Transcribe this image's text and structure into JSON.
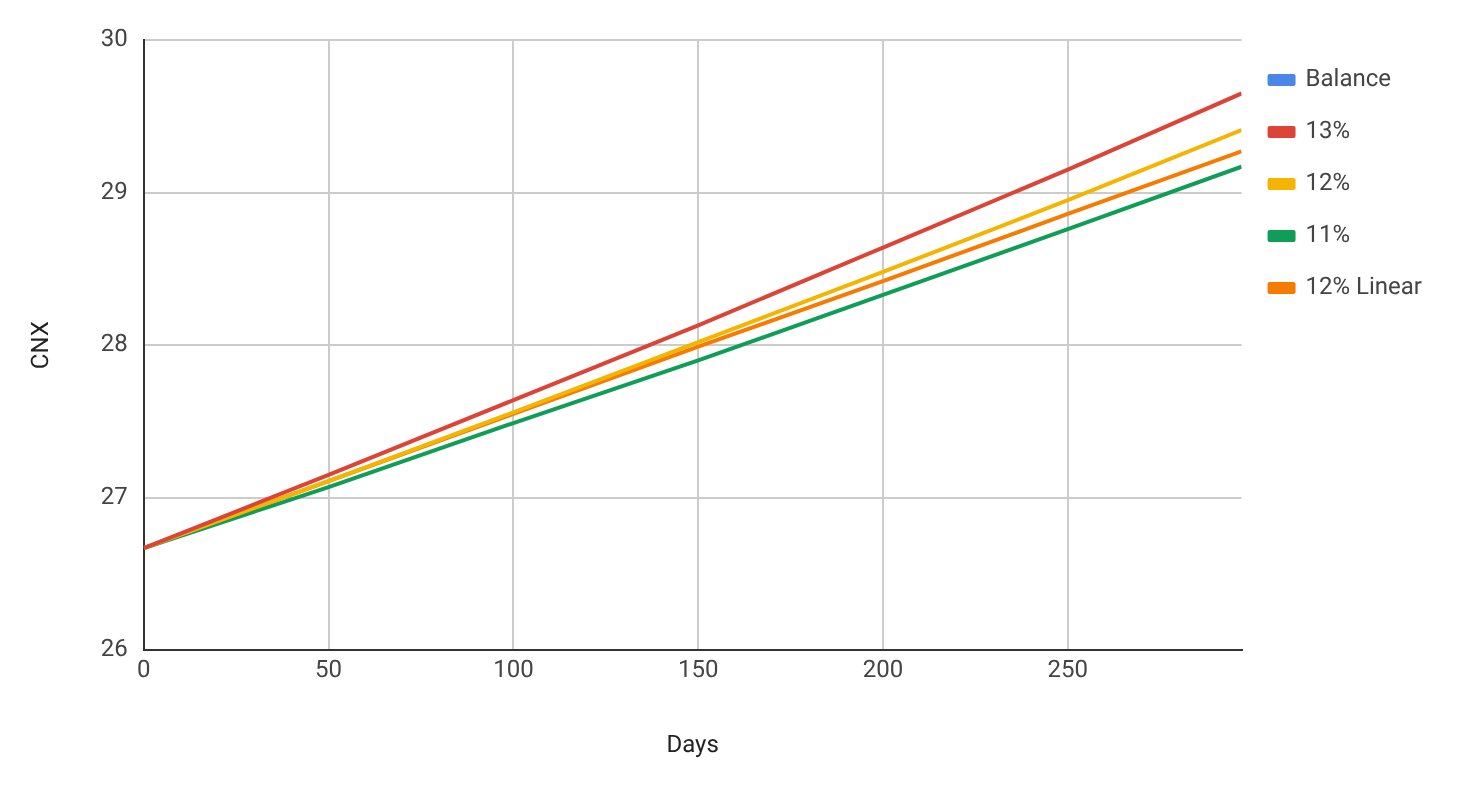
{
  "chart_data": {
    "type": "line",
    "xlabel": "Days",
    "ylabel": "CNX",
    "x": [
      0,
      50,
      100,
      150,
      200,
      250,
      297
    ],
    "series": [
      {
        "name": "Balance",
        "color": "#4a86e8",
        "values": [
          null,
          null,
          null,
          null,
          null,
          null,
          null
        ]
      },
      {
        "name": "13%",
        "color": "#db4437",
        "values": [
          26.67,
          27.15,
          27.64,
          28.13,
          28.64,
          29.15,
          29.65
        ]
      },
      {
        "name": "12%",
        "color": "#f4b400",
        "values": [
          26.67,
          27.11,
          27.56,
          28.02,
          28.48,
          28.95,
          29.41
        ]
      },
      {
        "name": "11%",
        "color": "#0f9d58",
        "values": [
          26.67,
          27.07,
          27.49,
          27.9,
          28.33,
          28.76,
          29.17
        ]
      },
      {
        "name": "12% Linear",
        "color": "#f57c00",
        "values": [
          26.67,
          27.11,
          27.55,
          27.99,
          28.42,
          28.86,
          29.27
        ]
      }
    ],
    "xlim": [
      0,
      297
    ],
    "xticks": [
      0,
      50,
      100,
      150,
      200,
      250
    ],
    "ylim": [
      26,
      30
    ],
    "yticks": [
      26,
      27,
      28,
      29,
      30
    ],
    "grid": true,
    "legend": "right",
    "marker": "none",
    "line_style": "solid"
  }
}
